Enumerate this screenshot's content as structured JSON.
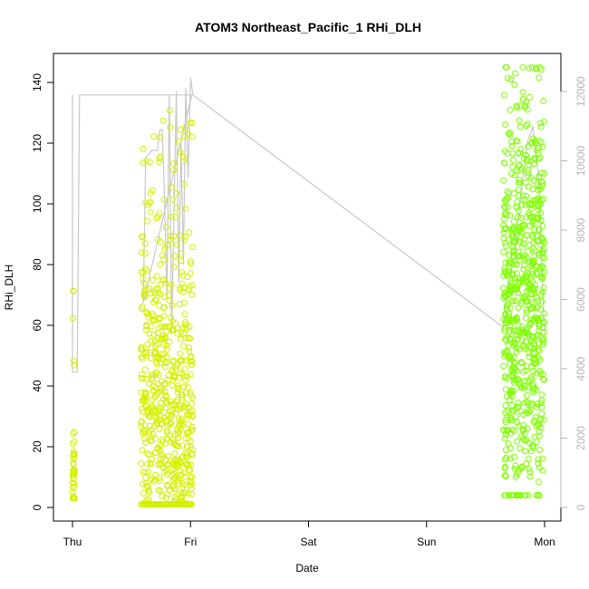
{
  "chart_data": {
    "type": "scatter",
    "title": "ATOM3 Northeast_Pacific_1 RHi_DLH",
    "xlabel": "Date",
    "ylabel": "RHi_DLH",
    "x_ticks": [
      "Thu",
      "Fri",
      "Sat",
      "Sun",
      "Mon"
    ],
    "x_range": [
      0,
      4
    ],
    "ylim": [
      0,
      140
    ],
    "y_ticks": [
      0,
      20,
      40,
      60,
      80,
      100,
      120,
      140
    ],
    "y2_range": [
      0,
      12000
    ],
    "y2_ticks": [
      0,
      2000,
      4000,
      6000,
      8000,
      10000,
      12000
    ],
    "grid": false,
    "colors": {
      "early": "#d4f000",
      "late": "#7fff00",
      "altitude_line": "#c8c8c8",
      "right_axis": "#b5b5b5"
    },
    "series": [
      {
        "marker": "circle",
        "color": "#d4f000",
        "segments": [
          {
            "x_start": 0.0,
            "x_end": 0.02,
            "y_min": 3,
            "y_max": 80,
            "n": 45,
            "center": 12,
            "spread": 10
          },
          {
            "x_start": 0.58,
            "x_end": 1.02,
            "y_min": 1,
            "y_max": 132,
            "n": 700,
            "center": 25,
            "spread": 30
          }
        ]
      },
      {
        "marker": "circle",
        "color": "#7fff00",
        "segments": [
          {
            "x_start": 3.65,
            "x_end": 4.0,
            "y_min": 4,
            "y_max": 145,
            "n": 700,
            "center": 65,
            "spread": 32
          }
        ]
      },
      {
        "axis": "right",
        "marker": "line",
        "color": "#c8c8c8",
        "x": [
          0.0,
          0.0,
          0.02,
          0.04,
          0.06,
          1.01,
          0.6,
          0.62,
          0.65,
          0.67,
          0.72,
          0.74,
          0.76,
          0.78,
          0.8,
          0.82,
          0.84,
          0.86,
          0.88,
          0.9,
          0.92,
          0.94,
          0.96,
          0.98,
          1.0,
          1.02,
          3.65,
          3.7,
          3.75,
          3.8,
          3.85,
          3.9,
          3.95,
          4.0
        ],
        "y": [
          11900,
          3900,
          3900,
          3900,
          11900,
          11900,
          5900,
          10100,
          10200,
          10300,
          10300,
          10900,
          10900,
          9000,
          6000,
          11900,
          5000,
          8500,
          12000,
          6500,
          10500,
          7000,
          12100,
          9500,
          12400,
          11900,
          5200,
          6500,
          7500,
          9000,
          10500,
          11000,
          9500,
          5000
        ]
      }
    ]
  }
}
